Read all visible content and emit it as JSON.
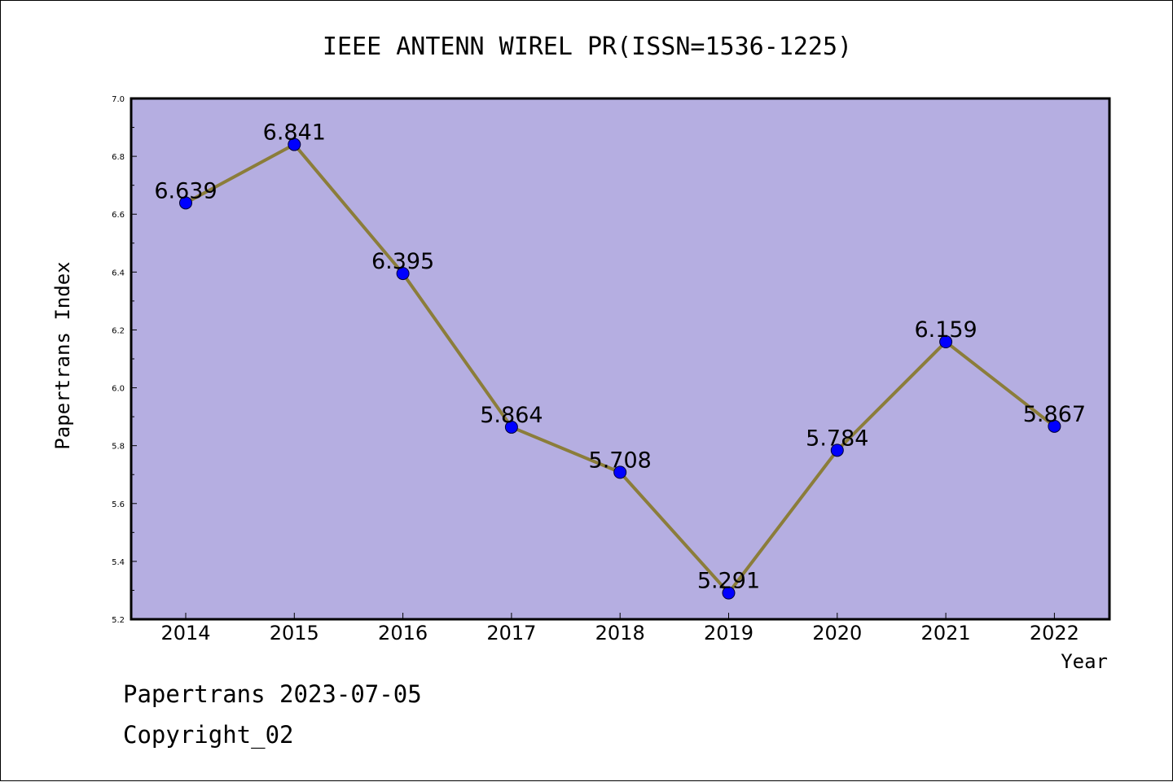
{
  "chart_data": {
    "type": "line",
    "title": "IEEE ANTENN WIREL PR(ISSN=1536-1225)",
    "xlabel": "Year",
    "ylabel": "Papertrans Index",
    "categories": [
      "2014",
      "2015",
      "2016",
      "2017",
      "2018",
      "2019",
      "2020",
      "2021",
      "2022"
    ],
    "series": [
      {
        "values": [
          6.639,
          6.841,
          6.395,
          5.864,
          5.708,
          5.291,
          5.784,
          6.159,
          5.867
        ],
        "labels": [
          "6.639",
          "6.841",
          "6.395",
          "5.864",
          "5.708",
          "5.291",
          "5.784",
          "6.159",
          "5.867"
        ]
      }
    ],
    "ylim": [
      5.2,
      7.0
    ],
    "yticks": [
      "5.2",
      "5.4",
      "5.6",
      "5.8",
      "6.0",
      "6.2",
      "6.4",
      "6.6",
      "6.8",
      "7.0"
    ],
    "grid": false,
    "colors": {
      "plot_background": "#b5aee1",
      "line": "#8b7d3a",
      "marker": "#0000ff"
    }
  },
  "footer": {
    "line1": "Papertrans 2023-07-05",
    "line2": "Copyright_02"
  }
}
